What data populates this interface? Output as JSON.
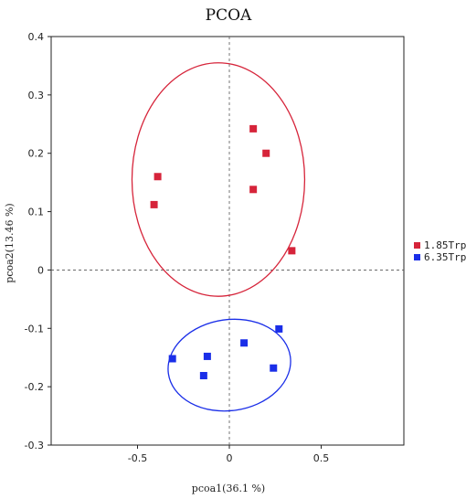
{
  "chart_data": {
    "type": "scatter",
    "title": "PCOA",
    "xlabel": "pcoa1(36.1 %)",
    "ylabel": "pcoa2(13.46 %)",
    "xlim": [
      -0.97,
      0.95
    ],
    "ylim": [
      -0.3,
      0.4
    ],
    "xticks": [
      -0.5,
      0,
      0.5
    ],
    "xtick_labels": [
      "-0.5",
      "0",
      "0.5"
    ],
    "yticks": [
      -0.3,
      -0.2,
      -0.1,
      0,
      0.1,
      0.2,
      0.3,
      0.4
    ],
    "ytick_labels": [
      "-0.3",
      "-0.2",
      "-0.1",
      "0",
      "0.1",
      "0.2",
      "0.3",
      "0.4"
    ],
    "zero_lines": true,
    "legend_position": "right",
    "series": [
      {
        "name": "1.85Trp",
        "color": "#d6243a",
        "points": [
          [
            0.13,
            0.242
          ],
          [
            0.2,
            0.2
          ],
          [
            -0.39,
            0.16
          ],
          [
            0.13,
            0.138
          ],
          [
            -0.41,
            0.112
          ],
          [
            0.34,
            0.033
          ]
        ],
        "ellipse": {
          "cx": -0.06,
          "cy": 0.155,
          "rx": 0.94,
          "ry": 0.2
        }
      },
      {
        "name": "6.35Trp",
        "color": "#1a2ee8",
        "points": [
          [
            0.27,
            -0.101
          ],
          [
            0.08,
            -0.125
          ],
          [
            -0.12,
            -0.148
          ],
          [
            -0.31,
            -0.152
          ],
          [
            0.24,
            -0.168
          ],
          [
            -0.14,
            -0.181
          ]
        ],
        "ellipse": {
          "cx": 0.0,
          "cy": -0.163,
          "rx": 0.67,
          "ry": 0.078,
          "angle_deg": -8
        }
      }
    ]
  }
}
